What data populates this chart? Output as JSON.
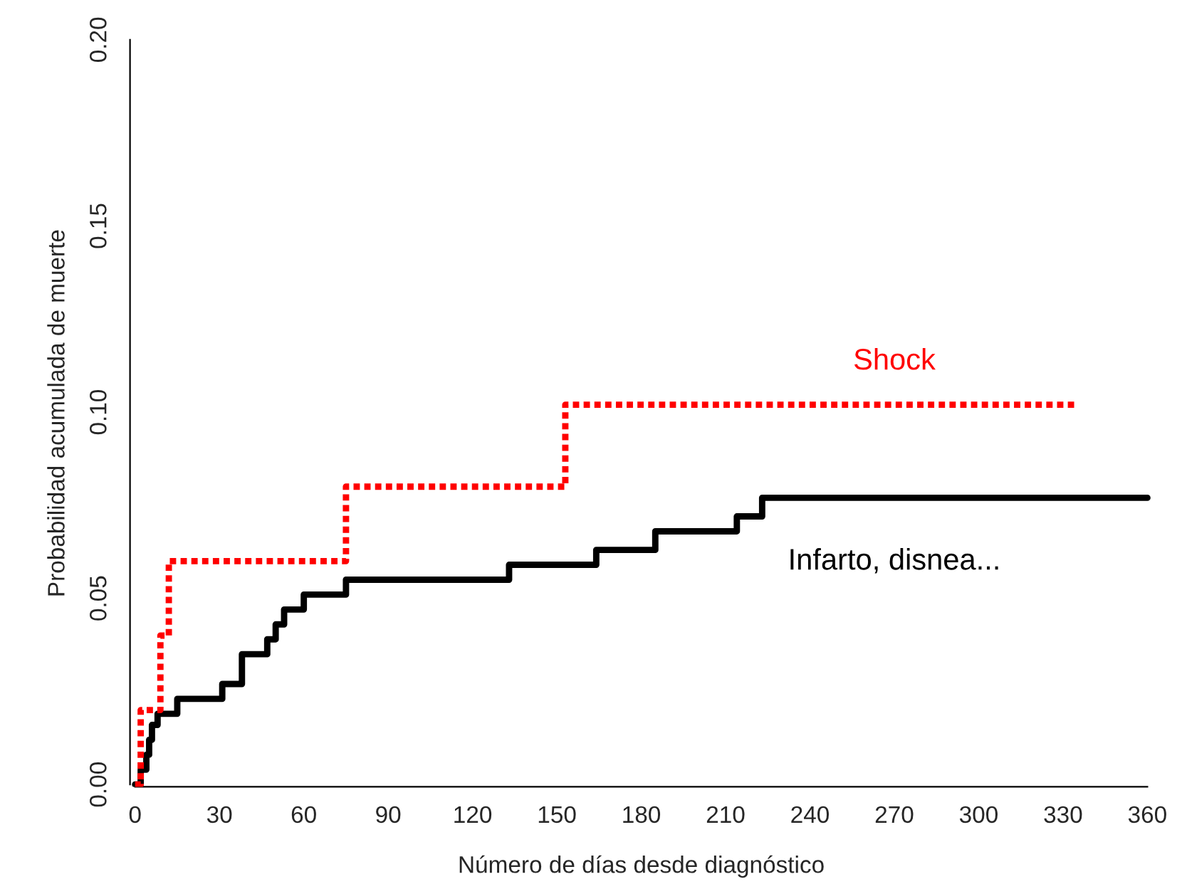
{
  "chart_data": {
    "type": "step",
    "xlabel": "Número de días desde diagnóstico",
    "ylabel": "Probabilidad acumulada de muerte",
    "xlim": [
      0,
      360
    ],
    "xticks": [
      0,
      30,
      60,
      90,
      120,
      150,
      180,
      210,
      240,
      270,
      300,
      330,
      360
    ],
    "ylim": [
      0,
      0.2
    ],
    "yticks": [
      {
        "value": 0,
        "label": "0.00"
      },
      0.05,
      {
        "value": 0.1,
        "label": "0.10"
      },
      0.15,
      {
        "value": 0.2,
        "label": "0.20"
      }
    ],
    "grid": false,
    "legend": false,
    "marker": "none",
    "series": [
      {
        "name": "Shock",
        "color": "#ff0000",
        "line_style": "dotted",
        "x": [
          0,
          2,
          9,
          12,
          75,
          153,
          334
        ],
        "values": [
          0,
          0.02,
          0.04,
          0.06,
          0.08,
          0.102,
          0.102
        ]
      },
      {
        "name": "Infarto, disnea...",
        "color": "#000000",
        "line_style": "solid",
        "x": [
          0,
          2,
          4,
          5,
          6,
          8,
          15,
          31,
          38,
          47,
          50,
          53,
          60,
          75,
          133,
          164,
          185,
          214,
          223,
          360
        ],
        "values": [
          0,
          0.004,
          0.008,
          0.012,
          0.016,
          0.019,
          0.023,
          0.027,
          0.035,
          0.039,
          0.043,
          0.047,
          0.051,
          0.055,
          0.059,
          0.063,
          0.068,
          0.072,
          0.077,
          0.077
        ]
      }
    ]
  }
}
